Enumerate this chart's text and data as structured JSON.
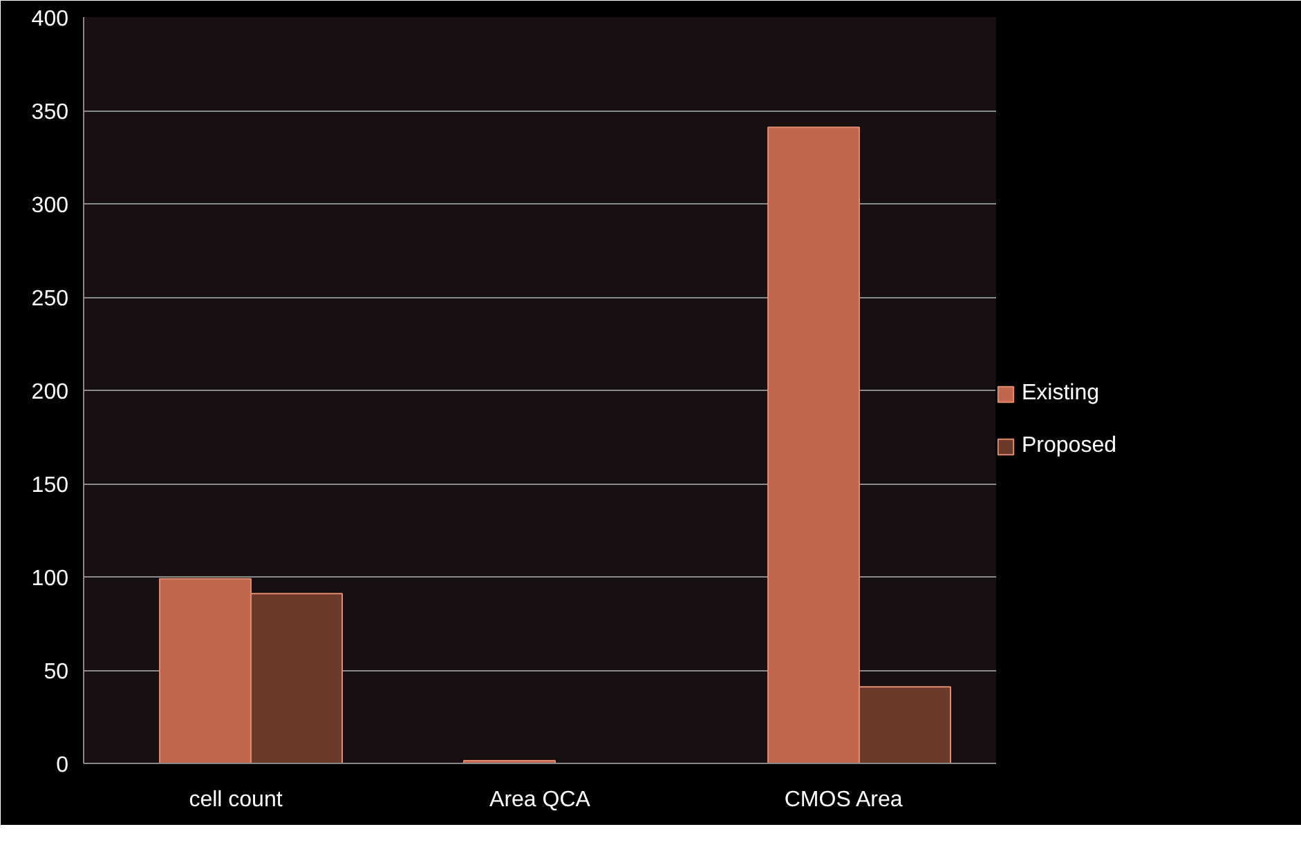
{
  "chart_data": {
    "type": "bar",
    "categories": [
      "cell count",
      "Area QCA",
      "CMOS Area"
    ],
    "series": [
      {
        "name": "Existing",
        "color": "#c0674e",
        "values": [
          99,
          1.5,
          341
        ]
      },
      {
        "name": "Proposed",
        "color": "#6b3a2a",
        "values": [
          91,
          null,
          41
        ]
      }
    ],
    "ylim": [
      0,
      400
    ],
    "yticks": [
      0,
      50,
      100,
      150,
      200,
      250,
      300,
      350,
      400
    ],
    "grid": "y",
    "legend": "right"
  }
}
